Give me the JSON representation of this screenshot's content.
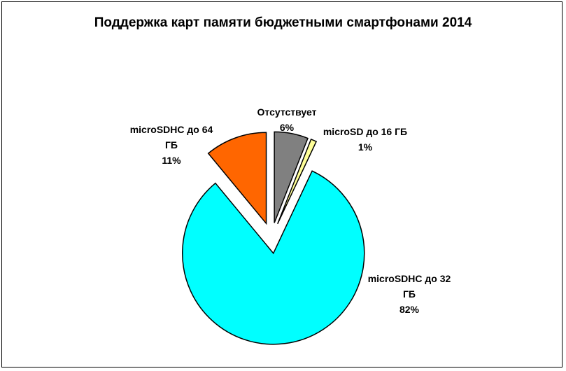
{
  "chart_data": {
    "type": "pie",
    "title": "Поддержка карт памяти бюджетными смартфонами 2014",
    "categories": [
      "Отсутствует",
      "microSD до 16 ГБ",
      "microSDHC до 32 ГБ",
      "microSDHC до 64 ГБ"
    ],
    "values": [
      6,
      1,
      82,
      11
    ],
    "value_labels": [
      "6%",
      "1%",
      "82%",
      "11%"
    ],
    "colors": [
      "#808080",
      "#ffff99",
      "#00ffff",
      "#ff6600"
    ]
  }
}
